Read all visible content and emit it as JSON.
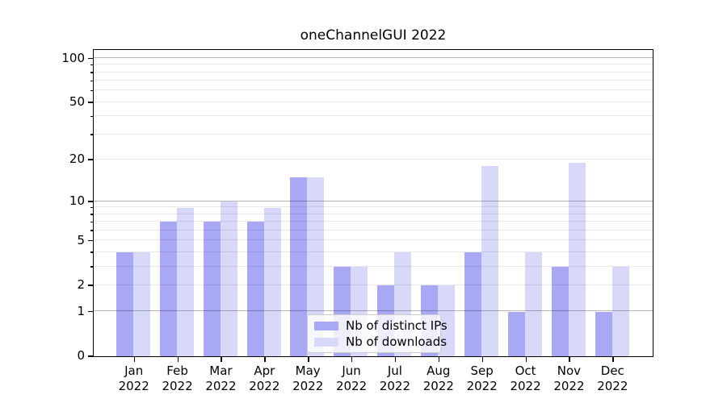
{
  "title": "oneChannelGUI 2022",
  "chart_data": {
    "type": "bar",
    "title": "oneChannelGUI 2022",
    "categories": [
      "Jan",
      "Feb",
      "Mar",
      "Apr",
      "May",
      "Jun",
      "Jul",
      "Aug",
      "Sep",
      "Oct",
      "Nov",
      "Dec"
    ],
    "x_year": "2022",
    "series": [
      {
        "name": "Nb of distinct IPs",
        "color": "#a8a8f5",
        "values": [
          4,
          7,
          7,
          7,
          15,
          3,
          2,
          2,
          4,
          1,
          3,
          1
        ]
      },
      {
        "name": "Nb of downloads",
        "color": "#d8d8f8",
        "values": [
          4,
          9,
          10,
          9,
          15,
          3,
          4,
          2,
          18,
          4,
          19,
          3
        ]
      }
    ],
    "xlabel": "",
    "ylabel": "",
    "yscale": "log1p",
    "ylim": [
      0,
      112
    ],
    "y_major_ticks": [
      0,
      1,
      2,
      5,
      10,
      20,
      50,
      100
    ],
    "y_minor_ticks": [
      3,
      4,
      6,
      7,
      8,
      9,
      30,
      40,
      60,
      70,
      80,
      90
    ],
    "y_emphasized_gridlines": [
      1,
      10,
      100
    ],
    "grid": "on",
    "legend_position": "lower center"
  },
  "colors": {
    "background": "#ffffff",
    "axis": "#000000",
    "grid_major": "#b9b9b9",
    "grid_minor": "#e9e9e9",
    "legend_border": "#cccccc",
    "series_ips": "#a8a8f5",
    "series_downloads": "#d8d8f8"
  }
}
